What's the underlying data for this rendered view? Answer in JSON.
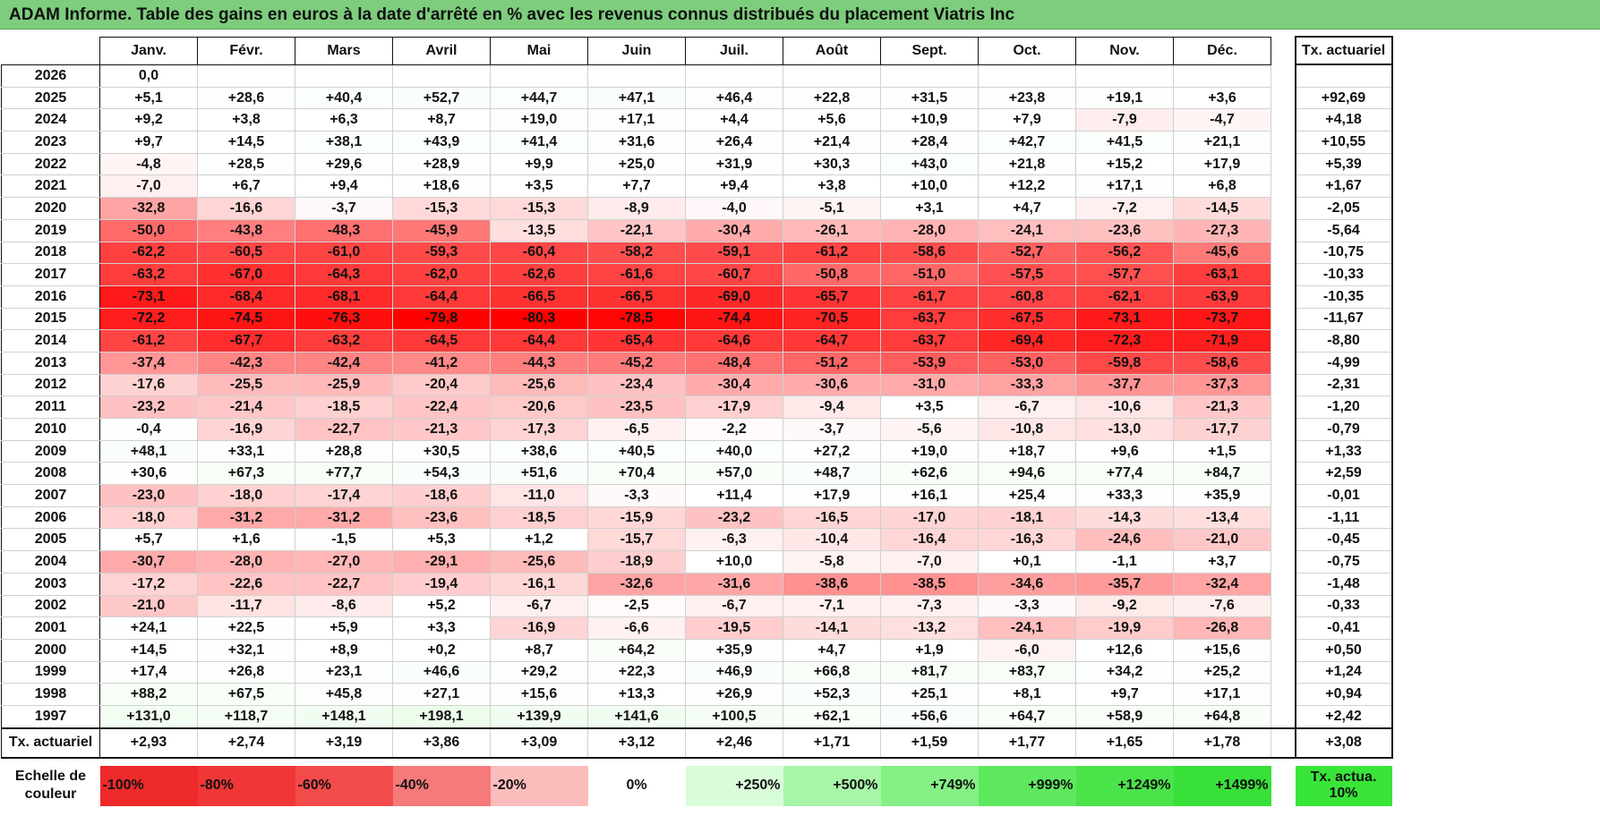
{
  "title": "ADAM Informe. Table des gains en euros à la date d'arrêté en % avec les revenus connus distribués du placement Viatris Inc",
  "months": [
    "Janv.",
    "Févr.",
    "Mars",
    "Avril",
    "Mai",
    "Juin",
    "Juil.",
    "Août",
    "Sept.",
    "Oct.",
    "Nov.",
    "Déc."
  ],
  "ta_header": "Tx. actuariel",
  "rows": [
    {
      "year": "2026",
      "values": [
        "0,0",
        "",
        "",
        "",
        "",
        "",
        "",
        "",
        "",
        "",
        "",
        ""
      ],
      "ta": ""
    },
    {
      "year": "2025",
      "values": [
        "+5,1",
        "+28,6",
        "+40,4",
        "+52,7",
        "+44,7",
        "+47,1",
        "+46,4",
        "+22,8",
        "+31,5",
        "+23,8",
        "+19,1",
        "+3,6"
      ],
      "ta": "+92,69"
    },
    {
      "year": "2024",
      "values": [
        "+9,2",
        "+3,8",
        "+6,3",
        "+8,7",
        "+19,0",
        "+17,1",
        "+4,4",
        "+5,6",
        "+10,9",
        "+7,9",
        "-7,9",
        "-4,7"
      ],
      "ta": "+4,18"
    },
    {
      "year": "2023",
      "values": [
        "+9,7",
        "+14,5",
        "+38,1",
        "+43,9",
        "+41,4",
        "+31,6",
        "+26,4",
        "+21,4",
        "+28,4",
        "+42,7",
        "+41,5",
        "+21,1"
      ],
      "ta": "+10,55"
    },
    {
      "year": "2022",
      "values": [
        "-4,8",
        "+28,5",
        "+29,6",
        "+28,9",
        "+9,9",
        "+25,0",
        "+31,9",
        "+30,3",
        "+43,0",
        "+21,8",
        "+15,2",
        "+17,9"
      ],
      "ta": "+5,39"
    },
    {
      "year": "2021",
      "values": [
        "-7,0",
        "+6,7",
        "+9,4",
        "+18,6",
        "+3,5",
        "+7,7",
        "+9,4",
        "+3,8",
        "+10,0",
        "+12,2",
        "+17,1",
        "+6,8"
      ],
      "ta": "+1,67"
    },
    {
      "year": "2020",
      "values": [
        "-32,8",
        "-16,6",
        "-3,7",
        "-15,3",
        "-15,3",
        "-8,9",
        "-4,0",
        "-5,1",
        "+3,1",
        "+4,7",
        "-7,2",
        "-14,5"
      ],
      "ta": "-2,05"
    },
    {
      "year": "2019",
      "values": [
        "-50,0",
        "-43,8",
        "-48,3",
        "-45,9",
        "-13,5",
        "-22,1",
        "-30,4",
        "-26,1",
        "-28,0",
        "-24,1",
        "-23,6",
        "-27,3"
      ],
      "ta": "-5,64"
    },
    {
      "year": "2018",
      "values": [
        "-62,2",
        "-60,5",
        "-61,0",
        "-59,3",
        "-60,4",
        "-58,2",
        "-59,1",
        "-61,2",
        "-58,6",
        "-52,7",
        "-56,2",
        "-45,6"
      ],
      "ta": "-10,75"
    },
    {
      "year": "2017",
      "values": [
        "-63,2",
        "-67,0",
        "-64,3",
        "-62,0",
        "-62,6",
        "-61,6",
        "-60,7",
        "-50,8",
        "-51,0",
        "-57,5",
        "-57,7",
        "-63,1"
      ],
      "ta": "-10,33"
    },
    {
      "year": "2016",
      "values": [
        "-73,1",
        "-68,4",
        "-68,1",
        "-64,4",
        "-66,5",
        "-66,5",
        "-69,0",
        "-65,7",
        "-61,7",
        "-60,8",
        "-62,1",
        "-63,9"
      ],
      "ta": "-10,35"
    },
    {
      "year": "2015",
      "values": [
        "-72,2",
        "-74,5",
        "-76,3",
        "-79,8",
        "-80,3",
        "-78,5",
        "-74,4",
        "-70,5",
        "-63,7",
        "-67,5",
        "-73,1",
        "-73,7"
      ],
      "ta": "-11,67"
    },
    {
      "year": "2014",
      "values": [
        "-61,2",
        "-67,7",
        "-63,2",
        "-64,5",
        "-64,4",
        "-65,4",
        "-64,6",
        "-64,7",
        "-63,7",
        "-69,4",
        "-72,3",
        "-71,9"
      ],
      "ta": "-8,80"
    },
    {
      "year": "2013",
      "values": [
        "-37,4",
        "-42,3",
        "-42,4",
        "-41,2",
        "-44,3",
        "-45,2",
        "-48,4",
        "-51,2",
        "-53,9",
        "-53,0",
        "-59,8",
        "-58,6"
      ],
      "ta": "-4,99"
    },
    {
      "year": "2012",
      "values": [
        "-17,6",
        "-25,5",
        "-25,9",
        "-20,4",
        "-25,6",
        "-23,4",
        "-30,4",
        "-30,6",
        "-31,0",
        "-33,3",
        "-37,7",
        "-37,3"
      ],
      "ta": "-2,31"
    },
    {
      "year": "2011",
      "values": [
        "-23,2",
        "-21,4",
        "-18,5",
        "-22,4",
        "-20,6",
        "-23,5",
        "-17,9",
        "-9,4",
        "+3,5",
        "-6,7",
        "-10,6",
        "-21,3"
      ],
      "ta": "-1,20"
    },
    {
      "year": "2010",
      "values": [
        "-0,4",
        "-16,9",
        "-22,7",
        "-21,3",
        "-17,3",
        "-6,5",
        "-2,2",
        "-3,7",
        "-5,6",
        "-10,8",
        "-13,0",
        "-17,7"
      ],
      "ta": "-0,79"
    },
    {
      "year": "2009",
      "values": [
        "+48,1",
        "+33,1",
        "+28,8",
        "+30,5",
        "+38,6",
        "+40,5",
        "+40,0",
        "+27,2",
        "+19,0",
        "+18,7",
        "+9,6",
        "+1,5"
      ],
      "ta": "+1,33"
    },
    {
      "year": "2008",
      "values": [
        "+30,6",
        "+67,3",
        "+77,7",
        "+54,3",
        "+51,6",
        "+70,4",
        "+57,0",
        "+48,7",
        "+62,6",
        "+94,6",
        "+77,4",
        "+84,7"
      ],
      "ta": "+2,59"
    },
    {
      "year": "2007",
      "values": [
        "-23,0",
        "-18,0",
        "-17,4",
        "-18,6",
        "-11,0",
        "-3,3",
        "+11,4",
        "+17,9",
        "+16,1",
        "+25,4",
        "+33,3",
        "+35,9"
      ],
      "ta": "-0,01"
    },
    {
      "year": "2006",
      "values": [
        "-18,0",
        "-31,2",
        "-31,2",
        "-23,6",
        "-18,5",
        "-15,9",
        "-23,2",
        "-16,5",
        "-17,0",
        "-18,1",
        "-14,3",
        "-13,4"
      ],
      "ta": "-1,11"
    },
    {
      "year": "2005",
      "values": [
        "+5,7",
        "+1,6",
        "-1,5",
        "+5,3",
        "+1,2",
        "-15,7",
        "-6,3",
        "-10,4",
        "-16,4",
        "-16,3",
        "-24,6",
        "-21,0"
      ],
      "ta": "-0,45"
    },
    {
      "year": "2004",
      "values": [
        "-30,7",
        "-28,0",
        "-27,0",
        "-29,1",
        "-25,6",
        "-18,9",
        "+10,0",
        "-5,8",
        "-7,0",
        "+0,1",
        "-1,1",
        "+3,7"
      ],
      "ta": "-0,75"
    },
    {
      "year": "2003",
      "values": [
        "-17,2",
        "-22,6",
        "-22,7",
        "-19,4",
        "-16,1",
        "-32,6",
        "-31,6",
        "-38,6",
        "-38,5",
        "-34,6",
        "-35,7",
        "-32,4"
      ],
      "ta": "-1,48"
    },
    {
      "year": "2002",
      "values": [
        "-21,0",
        "-11,7",
        "-8,6",
        "+5,2",
        "-6,7",
        "-2,5",
        "-6,7",
        "-7,1",
        "-7,3",
        "-3,3",
        "-9,2",
        "-7,6"
      ],
      "ta": "-0,33"
    },
    {
      "year": "2001",
      "values": [
        "+24,1",
        "+22,5",
        "+5,9",
        "+3,3",
        "-16,9",
        "-6,6",
        "-19,5",
        "-14,1",
        "-13,2",
        "-24,1",
        "-19,9",
        "-26,8"
      ],
      "ta": "-0,41"
    },
    {
      "year": "2000",
      "values": [
        "+14,5",
        "+32,1",
        "+8,9",
        "+0,2",
        "+8,7",
        "+64,2",
        "+35,9",
        "+4,7",
        "+1,9",
        "-6,0",
        "+12,6",
        "+15,6"
      ],
      "ta": "+0,50"
    },
    {
      "year": "1999",
      "values": [
        "+17,4",
        "+26,8",
        "+23,1",
        "+46,6",
        "+29,2",
        "+22,3",
        "+46,9",
        "+66,8",
        "+81,7",
        "+83,7",
        "+34,2",
        "+25,2"
      ],
      "ta": "+1,24"
    },
    {
      "year": "1998",
      "values": [
        "+88,2",
        "+67,5",
        "+45,8",
        "+27,1",
        "+15,6",
        "+13,3",
        "+26,9",
        "+52,3",
        "+25,1",
        "+8,1",
        "+9,7",
        "+17,1"
      ],
      "ta": "+0,94"
    },
    {
      "year": "1997",
      "values": [
        "+131,0",
        "+118,7",
        "+148,1",
        "+198,1",
        "+139,9",
        "+141,6",
        "+100,5",
        "+62,1",
        "+56,6",
        "+64,7",
        "+58,9",
        "+64,8"
      ],
      "ta": "+2,42"
    }
  ],
  "summary": {
    "label": "Tx. actuariel",
    "values": [
      "+2,93",
      "+2,74",
      "+3,19",
      "+3,86",
      "+3,09",
      "+3,12",
      "+2,46",
      "+1,71",
      "+1,59",
      "+1,77",
      "+1,65",
      "+1,78"
    ],
    "ta": "+3,08"
  },
  "legend": {
    "label": "Echelle de couleur",
    "items": [
      {
        "text": "-100%",
        "color": "#ee2a2a",
        "align": "left"
      },
      {
        "text": "-80%",
        "color": "#f03636",
        "align": "left"
      },
      {
        "text": "-60%",
        "color": "#f34a4a",
        "align": "left"
      },
      {
        "text": "-40%",
        "color": "#f57a7a",
        "align": "left"
      },
      {
        "text": "-20%",
        "color": "#fbbcbc",
        "align": "left"
      },
      {
        "text": "0%",
        "color": "#ffffff",
        "align": "center"
      },
      {
        "text": "+250%",
        "color": "#d9fcd9",
        "align": "right"
      },
      {
        "text": "+500%",
        "color": "#a8f5a8",
        "align": "right"
      },
      {
        "text": "+749%",
        "color": "#85f085",
        "align": "right"
      },
      {
        "text": "+999%",
        "color": "#5ee85e",
        "align": "right"
      },
      {
        "text": "+1249%",
        "color": "#4ae44a",
        "align": "right"
      },
      {
        "text": "+1499%",
        "color": "#39e039",
        "align": "right"
      }
    ],
    "ta_label": "Tx. actua. 10%"
  }
}
